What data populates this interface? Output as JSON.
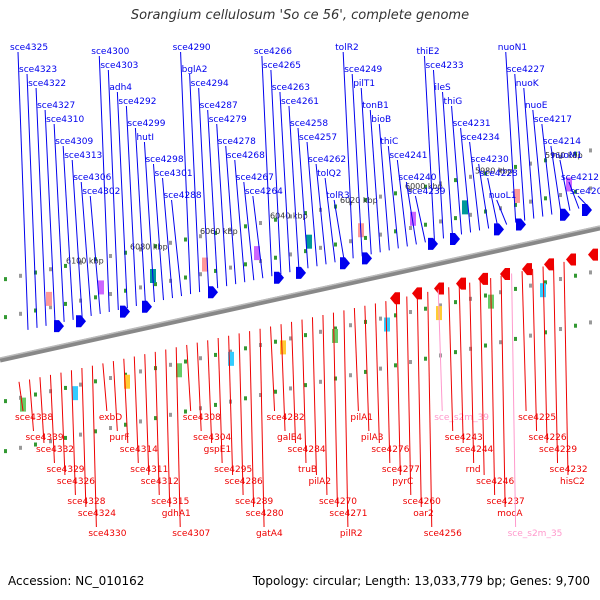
{
  "title": "Sorangium cellulosum 'So ce 56', complete genome",
  "footer": {
    "accession": "Accession: NC_010162",
    "topology": "Topology: circular; Length: 13,033,779 bp; Genes: 9,700"
  },
  "colors": {
    "forward": "#0000ee",
    "reverse": "#ee0000",
    "srna": "#ff99cc",
    "tick": "#339933",
    "axis": "#777777"
  },
  "axis_ticks": [
    {
      "label": "5960 kbp",
      "kbp": 5960
    },
    {
      "label": "5980 kbp",
      "kbp": 5980
    },
    {
      "label": "6000 kbp",
      "kbp": 6000
    },
    {
      "label": "6020 kbp",
      "kbp": 6020
    },
    {
      "label": "6040 kbp",
      "kbp": 6040
    },
    {
      "label": "6060 kbp",
      "kbp": 6060
    },
    {
      "label": "6080 kbp",
      "kbp": 6080
    },
    {
      "label": "6100 kbp",
      "kbp": 6100
    }
  ],
  "forward_genes": [
    "sce4325",
    "sce4323",
    "sce4322",
    "sce4327",
    "sce4310",
    "sce4309",
    "sce4313",
    "sce4306",
    "sce4302",
    "sce4300",
    "sce4303",
    "adh4",
    "sce4292",
    "sce4299",
    "hutI",
    "sce4298",
    "sce4301",
    "sce4288",
    "sce4290",
    "bglA2",
    "sce4294",
    "sce4287",
    "sce4279",
    "sce4278",
    "sce4268",
    "sce4267",
    "sce4264",
    "sce4266",
    "sce4265",
    "sce4263",
    "sce4261",
    "sce4258",
    "sce4257",
    "sce4262",
    "tolQ2",
    "tolR3",
    "tolR2",
    "sce4249",
    "pilT1",
    "tonB1",
    "bioB",
    "thiC",
    "sce4241",
    "sce4240",
    "sce4239",
    "thiE2",
    "sce4233",
    "ileS",
    "thiG",
    "sce4231",
    "sce4234",
    "sce4230",
    "sce4228",
    "nuoL1",
    "nuoN1",
    "sce4227",
    "nuoK",
    "nuoE",
    "sce4217",
    "sce4214",
    "nuoM1",
    "sce4212",
    "sce4203"
  ],
  "reverse_genes": [
    "sce4338",
    "sce4339",
    "sce4332",
    "sce4329",
    "sce4326",
    "sce4328",
    "sce4324",
    "sce4330",
    "exbD",
    "purF",
    "sce4314",
    "sce4311",
    "sce4312",
    "sce4315",
    "gdhA1",
    "sce4307",
    "sce4308",
    "sce4304",
    "gspE1",
    "sce4295",
    "sce4286",
    "sce4289",
    "sce4280",
    "gatA4",
    "sce4282",
    "galE4",
    "sce4284",
    "truB",
    "pilA2",
    "sce4270",
    "sce4271",
    "pilR2",
    "pilA1",
    "pilA3",
    "sce4276",
    "sce4277",
    "pyrC",
    "sce4260",
    "oar2",
    "sce4256",
    "sce_s2m_39",
    "sce4243",
    "sce4244",
    "rnd",
    "sce4246",
    "sce4237",
    "mocA",
    "sce_s2m_35",
    "sce4225",
    "sce4226",
    "sce4229",
    "sce4232",
    "hisC2"
  ],
  "srna_genes": [
    "sce_s2m_39",
    "sce_s2m_35"
  ]
}
